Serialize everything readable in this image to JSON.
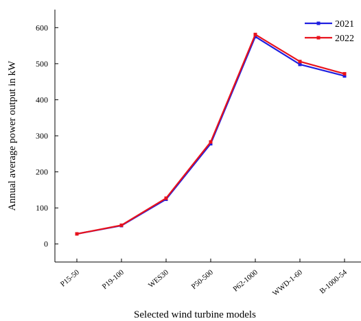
{
  "chart_data": {
    "type": "line",
    "xlabel": "Selected wind turbine models",
    "ylabel": "Annual average power output in kW",
    "categories": [
      "P15-50",
      "P19-100",
      "WES30",
      "P50-500",
      "P62-1000",
      "WWD-1-60",
      "B-1000-54"
    ],
    "ylim": [
      -50,
      650
    ],
    "yticks": [
      0,
      100,
      200,
      300,
      400,
      500,
      600
    ],
    "grid": false,
    "legend_position": "top-right",
    "series": [
      {
        "name": "2021",
        "color": "#1f1fe0",
        "values": [
          28,
          51,
          124,
          278,
          575,
          498,
          466
        ]
      },
      {
        "name": "2022",
        "color": "#e8121c",
        "values": [
          28,
          52,
          127,
          283,
          581,
          506,
          472
        ]
      }
    ]
  }
}
